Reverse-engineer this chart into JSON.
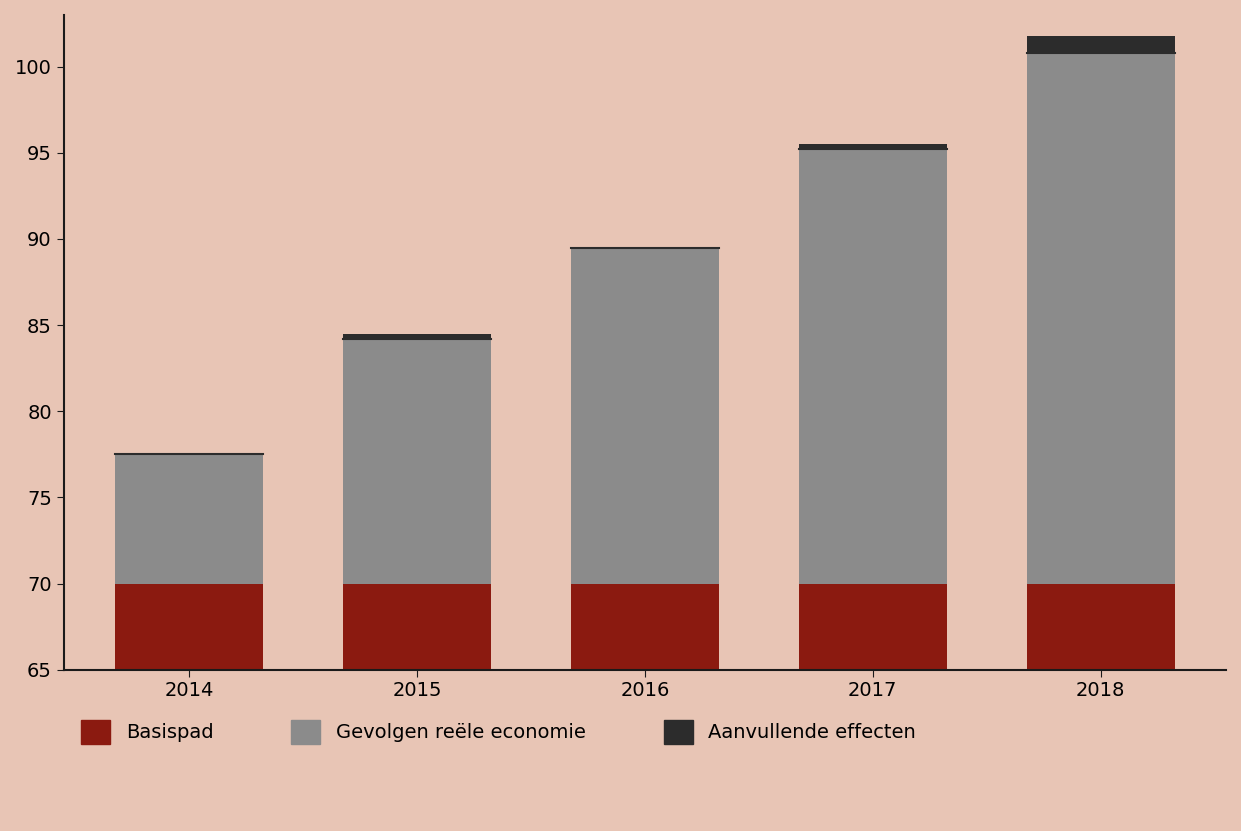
{
  "years": [
    2014,
    2015,
    2016,
    2017,
    2018
  ],
  "ymin": 65,
  "ymax": 103,
  "yticks": [
    65,
    70,
    75,
    80,
    85,
    90,
    95,
    100
  ],
  "basispad": [
    70,
    70,
    70,
    70,
    70
  ],
  "gevolgen": [
    7.5,
    14.2,
    19.5,
    25.2,
    30.8
  ],
  "aanvullende": [
    0.0,
    0.3,
    0.0,
    0.3,
    1.0
  ],
  "color_basispad": "#8B1A10",
  "color_gevolgen": "#8B8B8B",
  "color_aanvullende": "#2C2C2C",
  "color_background": "#E8C5B5",
  "bar_width": 0.65,
  "legend_labels": [
    "Basispad",
    "Gevolgen reële economie",
    "Aanvullende effecten"
  ],
  "tick_fontsize": 14,
  "legend_fontsize": 14,
  "spine_color": "#1a1a1a"
}
